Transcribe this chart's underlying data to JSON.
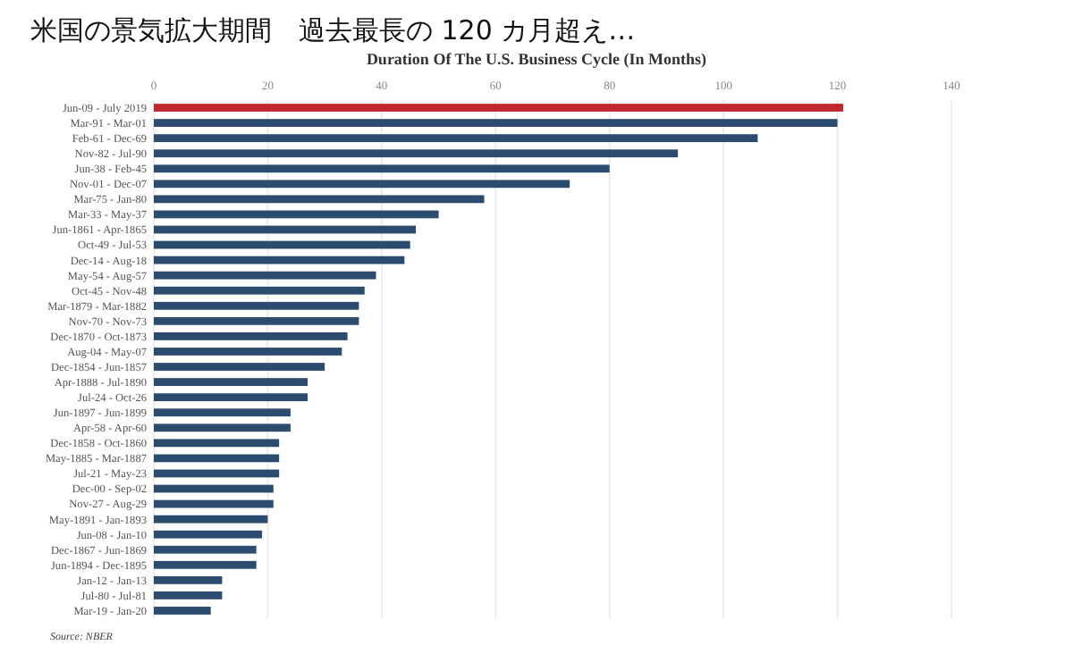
{
  "chart_data": {
    "type": "bar",
    "orientation": "horizontal",
    "title": "米国の景気拡大期間　過去最長の 120 カ月超え…",
    "subtitle": "Duration Of  The U.S. Business Cycle (In Months)",
    "categories": [
      "Jun-09 - July 2019",
      "Mar-91 - Mar-01",
      "Feb-61 - Dec-69",
      "Nov-82 - Jul-90",
      "Jun-38 - Feb-45",
      "Nov-01 - Dec-07",
      "Mar-75 - Jan-80",
      "Mar-33 - May-37",
      "Jun-1861 - Apr-1865",
      "Oct-49 - Jul-53",
      "Dec-14 - Aug-18",
      "May-54 - Aug-57",
      "Oct-45 - Nov-48",
      "Mar-1879 - Mar-1882",
      "Nov-70 - Nov-73",
      "Dec-1870 - Oct-1873",
      "Aug-04 - May-07",
      "Dec-1854 - Jun-1857",
      "Apr-1888 - Jul-1890",
      "Jul-24 - Oct-26",
      "Jun-1897 - Jun-1899",
      "Apr-58 - Apr-60",
      "Dec-1858 - Oct-1860",
      "May-1885 - Mar-1887",
      "Jul-21 - May-23",
      "Dec-00 - Sep-02",
      "Nov-27 - Aug-29",
      "May-1891 - Jan-1893",
      "Jun-08 - Jan-10",
      "Dec-1867 - Jun-1869",
      "Jun-1894 - Dec-1895",
      "Jan-12 - Jan-13",
      "Jul-80 - Jul-81",
      "Mar-19 - Jan-20"
    ],
    "values": [
      121,
      120,
      106,
      92,
      80,
      73,
      58,
      50,
      46,
      45,
      44,
      39,
      37,
      36,
      36,
      34,
      33,
      30,
      27,
      27,
      24,
      24,
      22,
      22,
      22,
      21,
      21,
      20,
      19,
      18,
      18,
      12,
      12,
      10
    ],
    "colors": [
      "#c0282d",
      "#2b4c6f",
      "#2b4c6f",
      "#2b4c6f",
      "#2b4c6f",
      "#2b4c6f",
      "#2b4c6f",
      "#2b4c6f",
      "#2b4c6f",
      "#2b4c6f",
      "#2b4c6f",
      "#2b4c6f",
      "#2b4c6f",
      "#2b4c6f",
      "#2b4c6f",
      "#2b4c6f",
      "#2b4c6f",
      "#2b4c6f",
      "#2b4c6f",
      "#2b4c6f",
      "#2b4c6f",
      "#2b4c6f",
      "#2b4c6f",
      "#2b4c6f",
      "#2b4c6f",
      "#2b4c6f",
      "#2b4c6f",
      "#2b4c6f",
      "#2b4c6f",
      "#2b4c6f",
      "#2b4c6f",
      "#2b4c6f",
      "#2b4c6f",
      "#2b4c6f"
    ],
    "xlim": [
      0,
      140
    ],
    "xticks": [
      0,
      20,
      40,
      60,
      80,
      100,
      120,
      140
    ],
    "grid": "x",
    "annotations": [
      "Source: NBER"
    ]
  }
}
